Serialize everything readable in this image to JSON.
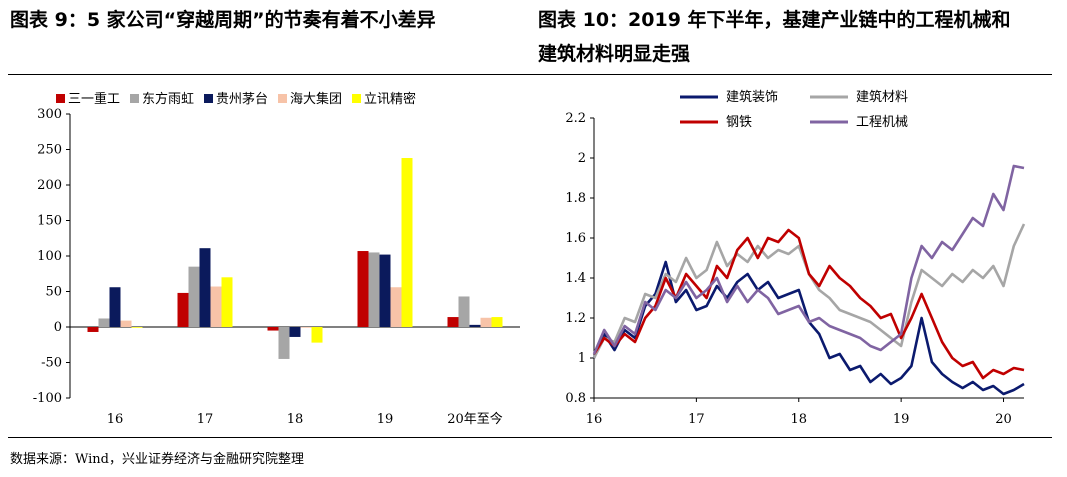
{
  "left_title": "图表 9：5 家公司“穿越周期”的节奏有着不小差异",
  "right_title_line1": "图表 10：2019 年下半年，基建产业链中的工程机械和",
  "right_title_line2": "建筑材料明显走强",
  "source_note": "数据来源：Wind，兴业证券经济与金融研究院整理",
  "chart_data": [
    {
      "type": "bar",
      "categories": [
        "16",
        "17",
        "18",
        "19",
        "20年至今"
      ],
      "series": [
        {
          "name": "三一重工",
          "color": "#c00000",
          "values": [
            -7,
            48,
            -5,
            107,
            14
          ]
        },
        {
          "name": "东方雨虹",
          "color": "#a6a6a6",
          "values": [
            12,
            85,
            -45,
            105,
            43
          ]
        },
        {
          "name": "贵州茅台",
          "color": "#0b1a5c",
          "values": [
            56,
            111,
            -14,
            102,
            3
          ]
        },
        {
          "name": "海大集团",
          "color": "#f7c3a8",
          "values": [
            9,
            57,
            -1,
            56,
            13
          ]
        },
        {
          "name": "立讯精密",
          "color": "#ffff00",
          "values": [
            -1,
            70,
            -22,
            238,
            14
          ]
        }
      ],
      "ylim": [
        -100,
        300
      ],
      "yticks": [
        -100,
        -50,
        0,
        50,
        100,
        150,
        200,
        250,
        300
      ],
      "legend": "top"
    },
    {
      "type": "line",
      "x_ticks": [
        "16",
        "17",
        "18",
        "19",
        "20"
      ],
      "xlim": [
        2016,
        2020.2
      ],
      "ylim": [
        0.8,
        2.2
      ],
      "yticks": [
        "0.8",
        "1",
        "1.2",
        "1.4",
        "1.6",
        "1.8",
        "2",
        "2.2"
      ],
      "legend": "top-left",
      "series": [
        {
          "name": "建筑装饰",
          "color": "#0b1a6e",
          "x": [
            2016.0,
            2016.1,
            2016.2,
            2016.3,
            2016.4,
            2016.5,
            2016.6,
            2016.7,
            2016.8,
            2016.9,
            2017.0,
            2017.1,
            2017.2,
            2017.3,
            2017.4,
            2017.5,
            2017.6,
            2017.7,
            2017.8,
            2017.9,
            2018.0,
            2018.1,
            2018.2,
            2018.3,
            2018.4,
            2018.5,
            2018.6,
            2018.7,
            2018.8,
            2018.9,
            2019.0,
            2019.1,
            2019.2,
            2019.3,
            2019.4,
            2019.5,
            2019.6,
            2019.7,
            2019.8,
            2019.9,
            2020.0,
            2020.1,
            2020.2
          ],
          "values": [
            1.0,
            1.12,
            1.04,
            1.14,
            1.1,
            1.26,
            1.32,
            1.48,
            1.28,
            1.34,
            1.24,
            1.26,
            1.36,
            1.3,
            1.38,
            1.42,
            1.34,
            1.38,
            1.3,
            1.32,
            1.34,
            1.18,
            1.12,
            1.0,
            1.02,
            0.94,
            0.96,
            0.88,
            0.92,
            0.87,
            0.9,
            0.96,
            1.2,
            0.98,
            0.92,
            0.88,
            0.85,
            0.88,
            0.84,
            0.86,
            0.82,
            0.84,
            0.87
          ]
        },
        {
          "name": "建筑材料",
          "color": "#a6a6a6",
          "x": [
            2016.0,
            2016.1,
            2016.2,
            2016.3,
            2016.4,
            2016.5,
            2016.6,
            2016.7,
            2016.8,
            2016.9,
            2017.0,
            2017.1,
            2017.2,
            2017.3,
            2017.4,
            2017.5,
            2017.6,
            2017.7,
            2017.8,
            2017.9,
            2018.0,
            2018.1,
            2018.2,
            2018.3,
            2018.4,
            2018.5,
            2018.6,
            2018.7,
            2018.8,
            2018.9,
            2019.0,
            2019.1,
            2019.2,
            2019.3,
            2019.4,
            2019.5,
            2019.6,
            2019.7,
            2019.8,
            2019.9,
            2020.0,
            2020.1,
            2020.2
          ],
          "values": [
            1.0,
            1.1,
            1.08,
            1.2,
            1.18,
            1.32,
            1.3,
            1.42,
            1.38,
            1.5,
            1.4,
            1.44,
            1.58,
            1.46,
            1.52,
            1.48,
            1.56,
            1.5,
            1.54,
            1.52,
            1.56,
            1.42,
            1.34,
            1.3,
            1.24,
            1.22,
            1.2,
            1.18,
            1.14,
            1.1,
            1.06,
            1.28,
            1.44,
            1.4,
            1.36,
            1.42,
            1.38,
            1.44,
            1.4,
            1.46,
            1.36,
            1.56,
            1.67
          ]
        },
        {
          "name": "钢铁",
          "color": "#c00000",
          "x": [
            2016.0,
            2016.1,
            2016.2,
            2016.3,
            2016.4,
            2016.5,
            2016.6,
            2016.7,
            2016.8,
            2016.9,
            2017.0,
            2017.1,
            2017.2,
            2017.3,
            2017.4,
            2017.5,
            2017.6,
            2017.7,
            2017.8,
            2017.9,
            2018.0,
            2018.1,
            2018.2,
            2018.3,
            2018.4,
            2018.5,
            2018.6,
            2018.7,
            2018.8,
            2018.9,
            2019.0,
            2019.1,
            2019.2,
            2019.3,
            2019.4,
            2019.5,
            2019.6,
            2019.7,
            2019.8,
            2019.9,
            2020.0,
            2020.1,
            2020.2
          ],
          "values": [
            1.02,
            1.1,
            1.06,
            1.12,
            1.08,
            1.2,
            1.26,
            1.4,
            1.3,
            1.42,
            1.36,
            1.3,
            1.46,
            1.4,
            1.54,
            1.6,
            1.5,
            1.6,
            1.58,
            1.64,
            1.6,
            1.42,
            1.36,
            1.46,
            1.4,
            1.36,
            1.3,
            1.26,
            1.2,
            1.22,
            1.1,
            1.2,
            1.32,
            1.2,
            1.08,
            1.0,
            0.96,
            0.98,
            0.9,
            0.94,
            0.92,
            0.95,
            0.94
          ]
        },
        {
          "name": "工程机械",
          "color": "#8064a2",
          "x": [
            2016.0,
            2016.1,
            2016.2,
            2016.3,
            2016.4,
            2016.5,
            2016.6,
            2016.7,
            2016.8,
            2016.9,
            2017.0,
            2017.1,
            2017.2,
            2017.3,
            2017.4,
            2017.5,
            2017.6,
            2017.7,
            2017.8,
            2017.9,
            2018.0,
            2018.1,
            2018.2,
            2018.3,
            2018.4,
            2018.5,
            2018.6,
            2018.7,
            2018.8,
            2018.9,
            2019.0,
            2019.1,
            2019.2,
            2019.3,
            2019.4,
            2019.5,
            2019.6,
            2019.7,
            2019.8,
            2019.9,
            2020.0,
            2020.1,
            2020.2
          ],
          "values": [
            1.02,
            1.14,
            1.06,
            1.16,
            1.12,
            1.28,
            1.24,
            1.34,
            1.3,
            1.38,
            1.3,
            1.34,
            1.4,
            1.28,
            1.36,
            1.28,
            1.34,
            1.3,
            1.22,
            1.24,
            1.26,
            1.18,
            1.2,
            1.16,
            1.14,
            1.12,
            1.1,
            1.06,
            1.04,
            1.08,
            1.12,
            1.4,
            1.56,
            1.5,
            1.58,
            1.54,
            1.62,
            1.7,
            1.66,
            1.82,
            1.74,
            1.96,
            1.95
          ]
        }
      ]
    }
  ]
}
